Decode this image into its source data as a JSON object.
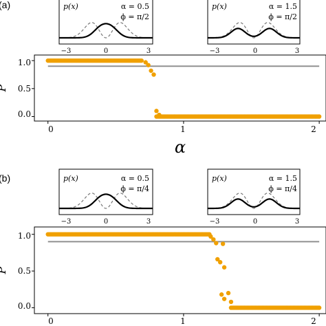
{
  "panels": [
    {
      "label": "(a)",
      "insets": [
        {
          "title": "p(x)",
          "alpha_text": "α = 0.5",
          "phi_text": "ϕ = π/2",
          "ticks": [
            "−3",
            "0",
            "3"
          ],
          "alpha": 0.5,
          "phi": "pi/2"
        },
        {
          "title": "p(x)",
          "alpha_text": "α = 1.5",
          "phi_text": "ϕ = π/2",
          "ticks": [
            "−3",
            "0",
            "3"
          ],
          "alpha": 1.5,
          "phi": "pi/2"
        }
      ]
    },
    {
      "label": "(b)",
      "insets": [
        {
          "title": "p(x)",
          "alpha_text": "α = 0.5",
          "phi_text": "ϕ = π/4",
          "ticks": [
            "−3",
            "0",
            "3"
          ],
          "alpha": 0.5,
          "phi": "pi/4"
        },
        {
          "title": "p(x)",
          "alpha_text": "α = 1.5",
          "phi_text": "ϕ = π/4",
          "ticks": [
            "−3",
            "0",
            "3"
          ],
          "alpha": 1.5,
          "phi": "pi/4"
        }
      ]
    }
  ],
  "chart_data": [
    {
      "type": "scatter",
      "panel": "a",
      "xlabel": "α",
      "ylabel": "P",
      "xlim": [
        -0.1,
        2.05
      ],
      "ylim": [
        -0.08,
        1.1
      ],
      "xticks": [
        "0",
        "1",
        "2"
      ],
      "yticks": [
        "0.0",
        "0.5",
        "1.0"
      ],
      "reference_line_y": 0.9,
      "point_color": "#f0a000",
      "line_color": "#909090",
      "transition": {
        "alpha_start": 0.7,
        "alpha_end": 0.8
      },
      "scattered_points": [
        {
          "x": 0.72,
          "y": 0.97
        },
        {
          "x": 0.74,
          "y": 0.92
        },
        {
          "x": 0.76,
          "y": 0.82
        },
        {
          "x": 0.78,
          "y": 0.75
        },
        {
          "x": 0.8,
          "y": 0.1
        },
        {
          "x": 0.82,
          "y": 0.03
        }
      ]
    },
    {
      "type": "scatter",
      "panel": "b",
      "xlabel": "α",
      "ylabel": "P",
      "xlim": [
        -0.1,
        2.05
      ],
      "ylim": [
        -0.08,
        1.1
      ],
      "xticks": [
        "0",
        "1",
        "2"
      ],
      "yticks": [
        "0.0",
        "0.5",
        "1.0"
      ],
      "reference_line_y": 0.9,
      "point_color": "#f0a000",
      "line_color": "#909090",
      "transition": {
        "alpha_start": 1.2,
        "alpha_end": 1.35
      },
      "scattered_points": [
        {
          "x": 1.2,
          "y": 0.97
        },
        {
          "x": 1.22,
          "y": 0.93
        },
        {
          "x": 1.24,
          "y": 0.88
        },
        {
          "x": 1.25,
          "y": 0.66
        },
        {
          "x": 1.27,
          "y": 0.62
        },
        {
          "x": 1.29,
          "y": 0.87
        },
        {
          "x": 1.3,
          "y": 0.55
        },
        {
          "x": 1.28,
          "y": 0.18
        },
        {
          "x": 1.3,
          "y": 0.12
        },
        {
          "x": 1.33,
          "y": 0.2
        },
        {
          "x": 1.35,
          "y": 0.08
        }
      ]
    }
  ]
}
